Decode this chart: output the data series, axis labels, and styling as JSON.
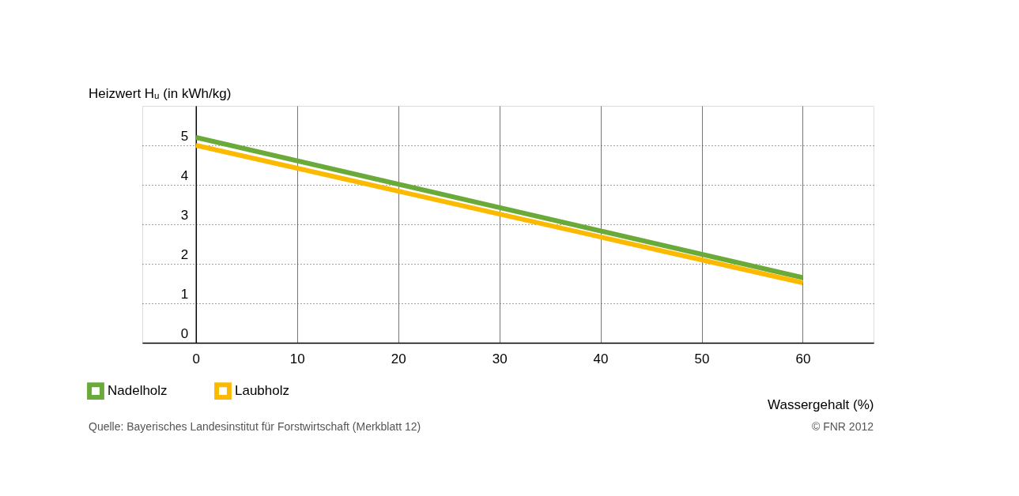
{
  "chart_data": {
    "type": "line",
    "ylabel": "Heizwert Hᵤ (in kWh/kg)",
    "xlabel": "Wassergehalt (%)",
    "x": [
      0,
      60
    ],
    "series": [
      {
        "name": "Nadelholz",
        "color": "#6aaa38",
        "values": [
          5.2,
          1.65
        ]
      },
      {
        "name": "Laubholz",
        "color": "#fbb900",
        "values": [
          5.0,
          1.52
        ]
      }
    ],
    "xlim": [
      -5.3,
      67
    ],
    "xticks": [
      0,
      10,
      20,
      30,
      40,
      50,
      60
    ],
    "ylim": [
      0,
      6
    ],
    "yticks": [
      0,
      1,
      2,
      3,
      4,
      5
    ],
    "grid": true,
    "legend": "bottom left",
    "marker": "none",
    "line_style": "solid",
    "annotations": [
      "Quelle: Bayerisches Landesinstitut für Forstwirtschaft (Merkblatt 12)",
      "© FNR 2012"
    ]
  }
}
